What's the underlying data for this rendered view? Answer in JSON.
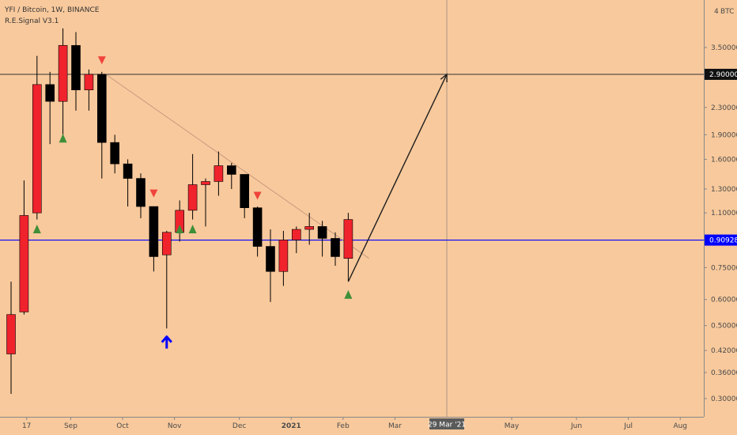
{
  "header": {
    "symbol_line": "YFI / Bitcoin, 1W, BINANCE",
    "indicator": "R.E.Signal V3.1"
  },
  "colors": {
    "background": "#f8c99c",
    "up_candle": "#f0232d",
    "down_candle": "#000000",
    "buy_signal": "#3f8f3a",
    "sell_signal": "#f0433b",
    "blue_line": "#0000ff",
    "forecast_arrow": "#1e1e1e",
    "trendline": "#c89a80"
  },
  "chart_data": {
    "type": "candlestick",
    "y_axis": {
      "scale": "log",
      "unit_label": "BTC",
      "top_label": "4",
      "ticks": [
        {
          "value": 3.5,
          "label": "3.50000"
        },
        {
          "value": 2.3,
          "label": "2.30000"
        },
        {
          "value": 1.9,
          "label": "1.90000"
        },
        {
          "value": 1.6,
          "label": "1.60000"
        },
        {
          "value": 1.3,
          "label": "1.30000"
        },
        {
          "value": 1.1,
          "label": "1.10000"
        },
        {
          "value": 0.75,
          "label": "0.75000"
        },
        {
          "value": 0.6,
          "label": "0.60000"
        },
        {
          "value": 0.5,
          "label": "0.50000"
        },
        {
          "value": 0.42,
          "label": "0.42000"
        },
        {
          "value": 0.36,
          "label": "0.36000"
        },
        {
          "value": 0.3,
          "label": "0.30000"
        }
      ]
    },
    "x_axis": {
      "ticks": [
        {
          "week": 1.2,
          "label": "17"
        },
        {
          "week": 4.6,
          "label": "Sep"
        },
        {
          "week": 8.6,
          "label": "Oct"
        },
        {
          "week": 12.6,
          "label": "Nov"
        },
        {
          "week": 17.6,
          "label": "Dec"
        },
        {
          "week": 21.6,
          "label": "2021",
          "bold": true
        },
        {
          "week": 25.6,
          "label": "Feb"
        },
        {
          "week": 29.6,
          "label": "Mar"
        },
        {
          "week": 38.6,
          "label": "May"
        },
        {
          "week": 43.6,
          "label": "Jun"
        },
        {
          "week": 47.6,
          "label": "Jul"
        },
        {
          "week": 51.6,
          "label": "Aug"
        }
      ],
      "highlight": {
        "week": 33.6,
        "label": "29 Mar '21"
      }
    },
    "candles": [
      {
        "o": 0.41,
        "h": 0.68,
        "l": 0.31,
        "c": 0.54
      },
      {
        "o": 0.55,
        "h": 1.38,
        "l": 0.54,
        "c": 1.08
      },
      {
        "o": 1.1,
        "h": 3.3,
        "l": 1.05,
        "c": 2.7
      },
      {
        "o": 2.7,
        "h": 2.95,
        "l": 1.78,
        "c": 2.4
      },
      {
        "o": 2.4,
        "h": 4.0,
        "l": 1.85,
        "c": 3.55
      },
      {
        "o": 3.55,
        "h": 3.9,
        "l": 2.25,
        "c": 2.6
      },
      {
        "o": 2.6,
        "h": 3.0,
        "l": 2.25,
        "c": 2.9
      },
      {
        "o": 2.9,
        "h": 2.95,
        "l": 1.4,
        "c": 1.8
      },
      {
        "o": 1.8,
        "h": 1.9,
        "l": 1.45,
        "c": 1.55
      },
      {
        "o": 1.55,
        "h": 1.6,
        "l": 1.15,
        "c": 1.4
      },
      {
        "o": 1.4,
        "h": 1.45,
        "l": 1.06,
        "c": 1.15
      },
      {
        "o": 1.15,
        "h": 1.12,
        "l": 0.73,
        "c": 0.81
      },
      {
        "o": 0.82,
        "h": 0.97,
        "l": 0.49,
        "c": 0.96
      },
      {
        "o": 0.96,
        "h": 1.2,
        "l": 0.9,
        "c": 1.12
      },
      {
        "o": 1.12,
        "h": 1.66,
        "l": 1.05,
        "c": 1.34
      },
      {
        "o": 1.34,
        "h": 1.4,
        "l": 1.0,
        "c": 1.37
      },
      {
        "o": 1.37,
        "h": 1.69,
        "l": 1.24,
        "c": 1.53
      },
      {
        "o": 1.53,
        "h": 1.56,
        "l": 1.3,
        "c": 1.44
      },
      {
        "o": 1.44,
        "h": 1.44,
        "l": 1.06,
        "c": 1.14
      },
      {
        "o": 1.14,
        "h": 1.15,
        "l": 0.81,
        "c": 0.87
      },
      {
        "o": 0.87,
        "h": 0.98,
        "l": 0.59,
        "c": 0.73
      },
      {
        "o": 0.73,
        "h": 0.97,
        "l": 0.66,
        "c": 0.91
      },
      {
        "o": 0.91,
        "h": 1.0,
        "l": 0.83,
        "c": 0.98
      },
      {
        "o": 0.98,
        "h": 1.1,
        "l": 0.88,
        "c": 1.0
      },
      {
        "o": 1.0,
        "h": 1.04,
        "l": 0.81,
        "c": 0.92
      },
      {
        "o": 0.92,
        "h": 0.96,
        "l": 0.76,
        "c": 0.81
      },
      {
        "o": 0.8,
        "h": 1.1,
        "l": 0.68,
        "c": 1.05
      }
    ],
    "signals": [
      {
        "week": 2,
        "type": "buy",
        "price": 0.98
      },
      {
        "week": 4,
        "type": "buy",
        "price": 1.85
      },
      {
        "week": 7,
        "type": "sell",
        "price": 3.2
      },
      {
        "week": 11,
        "type": "sell",
        "price": 1.26
      },
      {
        "week": 13,
        "type": "buy",
        "price": 0.98
      },
      {
        "week": 14,
        "type": "buy",
        "price": 0.98
      },
      {
        "week": 19,
        "type": "sell",
        "price": 1.24
      },
      {
        "week": 26,
        "type": "buy",
        "price": 0.62
      }
    ],
    "markers": [
      {
        "week": 12,
        "type": "up-arrow",
        "price": 0.45
      }
    ],
    "horizontal_lines": [
      {
        "price": 2.9,
        "label": "2.90000",
        "style": "dark"
      },
      {
        "price": 0.90928,
        "label": "0.90928",
        "style": "blue"
      }
    ],
    "trendline": {
      "from": {
        "week": 7.2,
        "price": 2.92
      },
      "to": {
        "week": 27.6,
        "price": 0.8
      }
    },
    "forecast_arrow": {
      "from": {
        "week": 26,
        "price": 0.68
      },
      "to": {
        "week": 33.6,
        "price": 2.9
      }
    },
    "vertical_line": {
      "week": 33.6
    }
  }
}
